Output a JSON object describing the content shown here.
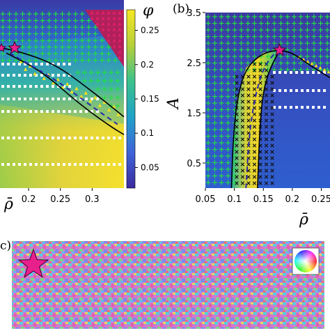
{
  "chart_data": [
    {
      "type": "heatmap",
      "panel_label": "",
      "xlabel": "ρ̄",
      "ylabel": "",
      "xticks": [
        "0.2",
        "0.25",
        "0.3"
      ],
      "xlim": [
        0.155,
        0.35
      ],
      "ylim": [
        0,
        3.5
      ],
      "colorbar": {
        "label": "φ",
        "ticks": [
          "0.25",
          "0.2",
          "0.15",
          "0.1",
          "0.05"
        ],
        "tick_values": [
          0.25,
          0.2,
          0.15,
          0.1,
          0.05
        ],
        "range": [
          0.02,
          0.28
        ]
      },
      "markers": {
        "green_plus": "green cross marker",
        "white_square": "white square marker",
        "yellow_triangle": "yellow triangle marker",
        "red_triangle": "red triangle marker",
        "star": "magenta star"
      },
      "boundaries": {
        "upper": [
          [
            0.155,
            2.75
          ],
          [
            0.18,
            2.7
          ],
          [
            0.24,
            2.45
          ],
          [
            0.3,
            1.9
          ],
          [
            0.35,
            1.4
          ]
        ],
        "lower": [
          [
            0.165,
            2.65
          ],
          [
            0.22,
            2.3
          ],
          [
            0.28,
            1.65
          ],
          [
            0.33,
            1.2
          ],
          [
            0.35,
            1.05
          ]
        ],
        "dashed": [
          [
            0.17,
            2.65
          ],
          [
            0.24,
            2.15
          ],
          [
            0.3,
            1.6
          ],
          [
            0.34,
            1.25
          ]
        ]
      },
      "star": [
        0.178,
        2.75
      ]
    },
    {
      "type": "heatmap",
      "panel_label": "(b)",
      "xlabel": "ρ̄",
      "ylabel": "A",
      "xticks": [
        "0.05",
        "0.1",
        "0.15",
        "0.2",
        "0.25"
      ],
      "xtick_values": [
        0.05,
        0.1,
        0.15,
        0.2,
        0.25
      ],
      "yticks": [
        "0.5",
        "1.5",
        "2.5",
        "3.5"
      ],
      "ytick_values": [
        0.5,
        1.5,
        2.5,
        3.5
      ],
      "xlim": [
        0.05,
        0.265
      ],
      "ylim": [
        0,
        3.5
      ],
      "boundaries": {
        "left": [
          [
            0.095,
            0.0
          ],
          [
            0.098,
            1.0
          ],
          [
            0.105,
            1.8
          ],
          [
            0.12,
            2.4
          ],
          [
            0.15,
            2.7
          ],
          [
            0.178,
            2.75
          ]
        ],
        "right": [
          [
            0.14,
            0.0
          ],
          [
            0.143,
            1.0
          ],
          [
            0.148,
            1.8
          ],
          [
            0.158,
            2.3
          ],
          [
            0.178,
            2.75
          ]
        ],
        "outer": [
          [
            0.178,
            2.75
          ],
          [
            0.2,
            2.7
          ],
          [
            0.23,
            2.45
          ],
          [
            0.265,
            2.2
          ]
        ],
        "dashed": [
          [
            0.12,
            0.0
          ],
          [
            0.125,
            1.0
          ],
          [
            0.135,
            1.8
          ],
          [
            0.15,
            2.4
          ],
          [
            0.17,
            2.7
          ]
        ]
      },
      "star": [
        0.178,
        2.75
      ]
    },
    {
      "type": "image",
      "panel_label": "c)",
      "description_marker": "star",
      "inset": "color wheel"
    }
  ]
}
